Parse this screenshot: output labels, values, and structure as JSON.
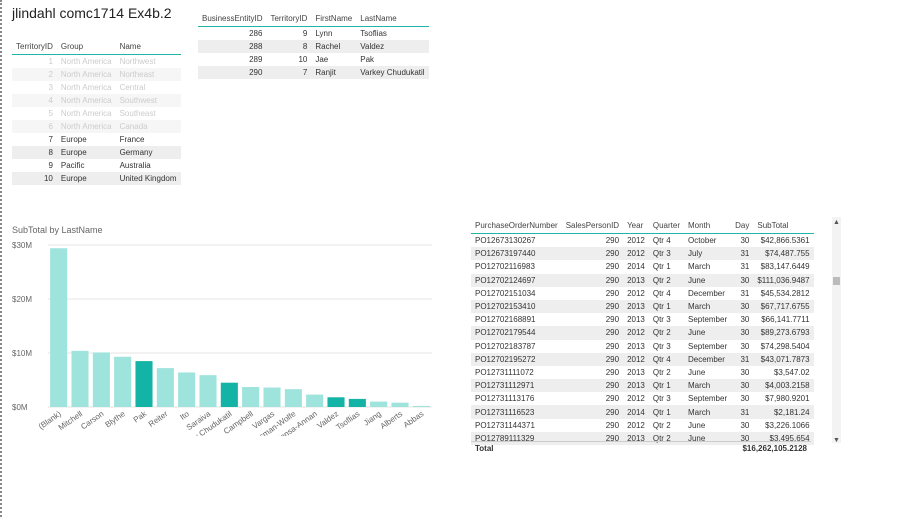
{
  "report_title": "jlindahl comc1714 Ex4b.2",
  "territory": {
    "headers": [
      "TerritoryID",
      "Group",
      "Name"
    ],
    "rows": [
      {
        "id": "1",
        "group": "North America",
        "name": "Northwest",
        "dim": true
      },
      {
        "id": "2",
        "group": "North America",
        "name": "Northeast",
        "dim": true
      },
      {
        "id": "3",
        "group": "North America",
        "name": "Central",
        "dim": true
      },
      {
        "id": "4",
        "group": "North America",
        "name": "Southwest",
        "dim": true
      },
      {
        "id": "5",
        "group": "North America",
        "name": "Southeast",
        "dim": true
      },
      {
        "id": "6",
        "group": "North America",
        "name": "Canada",
        "dim": true
      },
      {
        "id": "7",
        "group": "Europe",
        "name": "France",
        "dim": false
      },
      {
        "id": "8",
        "group": "Europe",
        "name": "Germany",
        "dim": false
      },
      {
        "id": "9",
        "group": "Pacific",
        "name": "Australia",
        "dim": false
      },
      {
        "id": "10",
        "group": "Europe",
        "name": "United Kingdom",
        "dim": false
      }
    ]
  },
  "employees": {
    "headers": [
      "BusinessEntityID",
      "TerritoryID",
      "FirstName",
      "LastName"
    ],
    "rows": [
      [
        "286",
        "9",
        "Lynn",
        "Tsoflias"
      ],
      [
        "288",
        "8",
        "Rachel",
        "Valdez"
      ],
      [
        "289",
        "10",
        "Jae",
        "Pak"
      ],
      [
        "290",
        "7",
        "Ranjit",
        "Varkey Chudukatil"
      ]
    ]
  },
  "chart_data": {
    "type": "bar",
    "title": "SubTotal by LastName",
    "xlabel": "",
    "ylabel": "",
    "ylim": [
      0,
      30000000
    ],
    "yticks": [
      {
        "value": 0,
        "label": "$0M"
      },
      {
        "value": 10000000,
        "label": "$10M"
      },
      {
        "value": 20000000,
        "label": "$20M"
      },
      {
        "value": 30000000,
        "label": "$30M"
      }
    ],
    "categories": [
      "(Blank)",
      "Mitchell",
      "Carson",
      "Blythe",
      "Pak",
      "Reiter",
      "Ito",
      "Saraiva",
      "Varkey Chudukatil",
      "Campbell",
      "Vargas",
      "Ansman-Wolfe",
      "Mensa-Annan",
      "Valdez",
      "Tsoflias",
      "Jiang",
      "Alberts",
      "Abbas"
    ],
    "values": [
      29400000,
      10400000,
      10100000,
      9300000,
      8500000,
      7200000,
      6400000,
      5900000,
      4500000,
      3700000,
      3600000,
      3300000,
      2300000,
      1800000,
      1500000,
      1000000,
      800000,
      200000
    ],
    "highlighted": [
      false,
      false,
      false,
      false,
      true,
      false,
      false,
      false,
      true,
      false,
      false,
      false,
      false,
      true,
      true,
      false,
      false,
      false
    ],
    "colors": {
      "normal": "#9ee3dc",
      "highlight": "#13b3a6"
    }
  },
  "purchase_orders": {
    "headers": [
      "PurchaseOrderNumber",
      "SalesPersonID",
      "Year",
      "Quarter",
      "Month",
      "Day",
      "SubTotal"
    ],
    "rows": [
      [
        "PO12673130267",
        "290",
        "2012",
        "Qtr 4",
        "October",
        "30",
        "$42,866.5361"
      ],
      [
        "PO12673197440",
        "290",
        "2012",
        "Qtr 3",
        "July",
        "31",
        "$74,487.755"
      ],
      [
        "PO12702116983",
        "290",
        "2014",
        "Qtr 1",
        "March",
        "31",
        "$83,147.6449"
      ],
      [
        "PO12702124697",
        "290",
        "2013",
        "Qtr 2",
        "June",
        "30",
        "$111,036.9487"
      ],
      [
        "PO12702151034",
        "290",
        "2012",
        "Qtr 4",
        "December",
        "31",
        "$45,534.2812"
      ],
      [
        "PO12702153410",
        "290",
        "2013",
        "Qtr 1",
        "March",
        "30",
        "$67,717.6755"
      ],
      [
        "PO12702168891",
        "290",
        "2013",
        "Qtr 3",
        "September",
        "30",
        "$66,141.7711"
      ],
      [
        "PO12702179544",
        "290",
        "2012",
        "Qtr 2",
        "June",
        "30",
        "$89,273.6793"
      ],
      [
        "PO12702183787",
        "290",
        "2013",
        "Qtr 3",
        "September",
        "30",
        "$74,298.5404"
      ],
      [
        "PO12702195272",
        "290",
        "2012",
        "Qtr 4",
        "December",
        "31",
        "$43,071.7873"
      ],
      [
        "PO12731111072",
        "290",
        "2013",
        "Qtr 2",
        "June",
        "30",
        "$3,547.02"
      ],
      [
        "PO12731112971",
        "290",
        "2013",
        "Qtr 1",
        "March",
        "30",
        "$4,003.2158"
      ],
      [
        "PO12731113176",
        "290",
        "2012",
        "Qtr 3",
        "September",
        "30",
        "$7,980.9201"
      ],
      [
        "PO12731116523",
        "290",
        "2014",
        "Qtr 1",
        "March",
        "31",
        "$2,181.24"
      ],
      [
        "PO12731144371",
        "290",
        "2012",
        "Qtr 2",
        "June",
        "30",
        "$3,226.1066"
      ],
      [
        "PO12789111329",
        "290",
        "2013",
        "Qtr 2",
        "June",
        "30",
        "$3,495.654"
      ]
    ],
    "total_label": "Total",
    "total_value": "$16,262,105.2128"
  }
}
